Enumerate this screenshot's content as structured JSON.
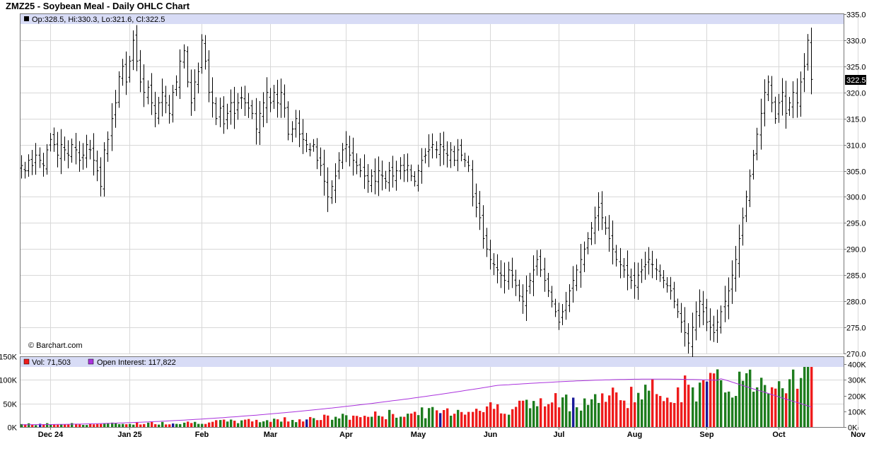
{
  "title": "ZMZ25 - Soybean Meal - Daily OHLC Chart",
  "legend": {
    "ohlc": "Op:328.5, Hi:330.3, Lo:321.6, Cl:322.5",
    "vol": "Vol: 71,503",
    "oi": "Open Interest: 117,822"
  },
  "watermark": "© Barchart.com",
  "last_price_label": "322.5",
  "colors": {
    "bar": "#000000",
    "vol_up": "#1e7d1e",
    "vol_down": "#ee1c1c",
    "vol_unch": "#1a1a99",
    "oi_line": "#aa33dd",
    "legend_bg": "#d8dcf6",
    "grid": "#d8d8d8"
  },
  "chart_data": {
    "type": "ohlc",
    "price_axis": {
      "ylim": [
        270,
        335
      ],
      "ticks": [
        "270.0",
        "275.0",
        "280.0",
        "285.0",
        "290.0",
        "295.0",
        "300.0",
        "305.0",
        "310.0",
        "315.0",
        "320.0",
        "325.0",
        "330.0",
        "335.0"
      ]
    },
    "volume_axis_left": {
      "ylim": [
        0,
        150000
      ],
      "ticks": [
        "0K",
        "50K",
        "100K",
        "150K"
      ]
    },
    "oi_axis_right": {
      "ylim": [
        0,
        450000
      ],
      "ticks": [
        "0K",
        "100K",
        "200K",
        "300K",
        "400K"
      ]
    },
    "x_labels": [
      "Dec 24",
      "Jan 25",
      "Feb",
      "Mar",
      "Apr",
      "May",
      "Jun",
      "Jul",
      "Aug",
      "Sep",
      "Oct",
      "Nov"
    ],
    "x_label_bar_index": [
      8,
      30,
      50,
      69,
      90,
      110,
      130,
      149,
      170,
      190,
      210,
      232
    ],
    "closes": [
      306,
      305,
      307,
      306,
      308,
      307,
      306,
      309,
      311,
      310,
      308,
      310,
      309,
      308,
      310,
      309,
      307,
      308,
      310,
      309,
      307,
      305,
      302,
      309,
      311,
      315,
      318,
      323,
      325,
      322,
      326,
      330,
      326,
      322,
      320,
      321,
      318,
      316,
      318,
      320,
      318,
      316,
      320,
      322,
      326,
      328,
      322,
      318,
      322,
      324,
      330,
      326,
      320,
      318,
      315,
      317,
      314,
      316,
      318,
      316,
      318,
      319,
      318,
      317,
      316,
      313,
      316,
      318,
      320,
      318,
      320,
      318,
      320,
      317,
      312,
      313,
      315,
      312,
      311,
      310,
      309,
      310,
      307,
      306,
      303,
      300,
      302,
      304,
      307,
      309,
      310,
      308,
      307,
      306,
      305,
      304,
      303,
      304,
      303,
      305,
      304,
      303,
      305,
      304,
      305,
      306,
      305,
      306,
      304,
      303,
      305,
      307,
      308,
      309,
      310,
      309,
      310,
      309,
      308,
      309,
      307,
      309,
      308,
      307,
      306,
      300,
      298,
      296,
      292,
      290,
      288,
      287,
      286,
      285,
      284,
      286,
      285,
      283,
      281,
      280,
      282,
      284,
      286,
      288,
      286,
      284,
      282,
      280,
      278,
      276,
      278,
      280,
      282,
      284,
      286,
      288,
      290,
      292,
      294,
      296,
      298,
      296,
      294,
      292,
      290,
      288,
      287,
      286,
      285,
      284,
      283,
      285,
      286,
      287,
      288,
      287,
      286,
      285,
      284,
      283,
      282,
      280,
      278,
      276,
      274,
      272,
      275,
      278,
      280,
      278,
      276,
      275,
      274,
      276,
      278,
      280,
      282,
      285,
      288,
      292,
      296,
      300,
      304,
      308,
      312,
      316,
      320,
      322,
      318,
      315,
      318,
      320,
      316,
      318,
      320,
      318,
      322,
      325,
      330,
      322.5
    ]
  }
}
